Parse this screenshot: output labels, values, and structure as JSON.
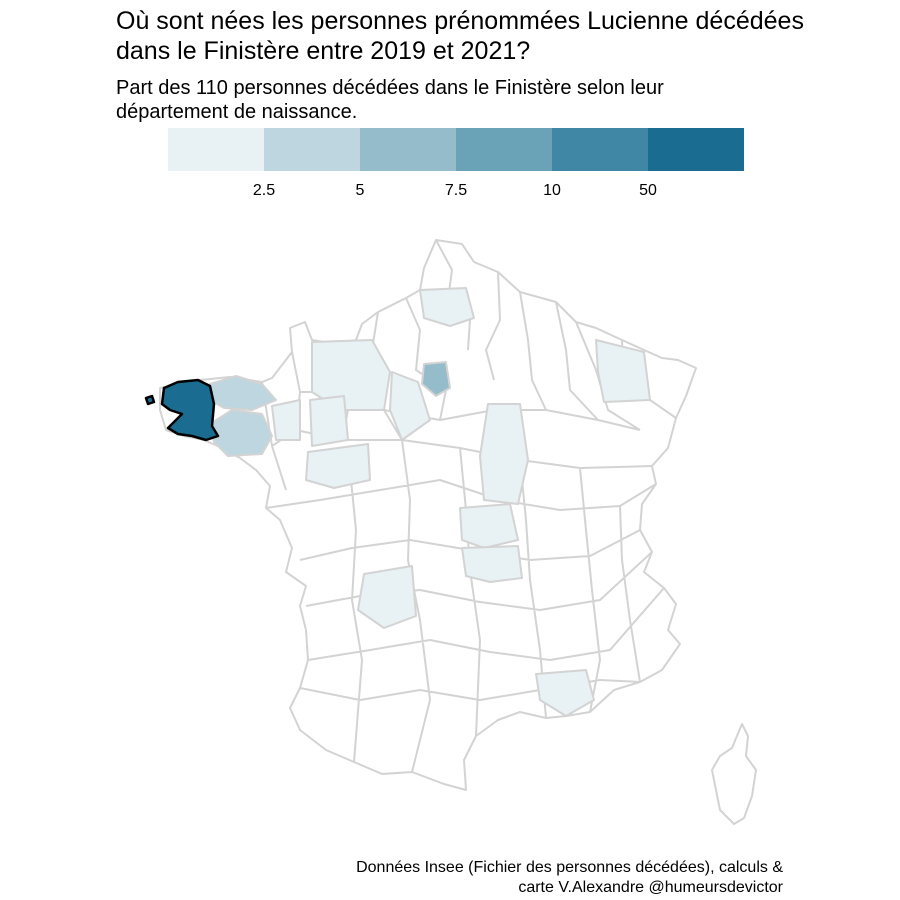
{
  "title": {
    "line1": "Où sont nées les personnes prénommées Lucienne décédées",
    "line2": "dans le Finistère entre 2019 et 2021?"
  },
  "subtitle": {
    "line1": "Part des 110 personnes décédées dans le Finistère selon leur",
    "line2": "département de naissance."
  },
  "legend": {
    "colors": [
      "#e8f1f4",
      "#bdd6df",
      "#94bccb",
      "#6aa3b8",
      "#3f87a4",
      "#1a6d90"
    ],
    "ticks": [
      "2.5",
      "5",
      "7.5",
      "10",
      "50"
    ]
  },
  "map": {
    "border_color": "#d3d3d3",
    "highlight_border_color": "#000000",
    "empty_fill": "#ffffff"
  },
  "caption": {
    "line1": "Données Insee (Fichier des personnes décédées), calculs &",
    "line2": "carte V.Alexandre @humeursdevictor"
  }
}
